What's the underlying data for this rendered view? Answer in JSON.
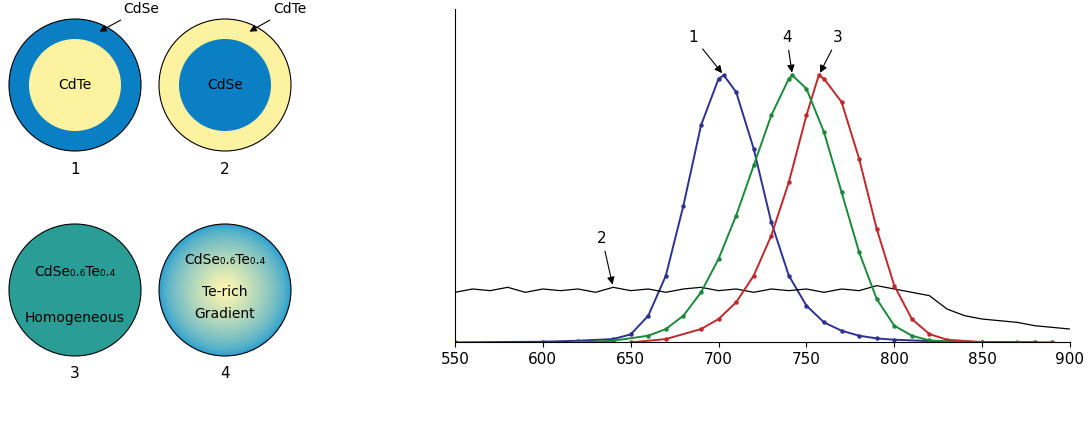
{
  "diagram": {
    "particles": [
      {
        "number": "1",
        "core": "CdTe",
        "shell": "CdSe"
      },
      {
        "number": "2",
        "core": "CdSe",
        "shell": "CdTe"
      },
      {
        "number": "3",
        "texts": [
          "CdSe₀.₆Te₀.₄",
          "Homogeneous"
        ]
      },
      {
        "number": "4",
        "texts": [
          "CdSe₀.₆Te₀.₄",
          "Te-rich",
          "Gradient"
        ]
      }
    ]
  },
  "chart_data": {
    "type": "line",
    "xlim": [
      550,
      900
    ],
    "xticks": [
      550,
      600,
      650,
      700,
      750,
      800,
      850,
      900
    ],
    "ylim": [
      0,
      1
    ],
    "yticks": [],
    "tick_labels": "x",
    "grid": false,
    "series": [
      {
        "color": "#2e3192",
        "marker": "o",
        "x": [
          550,
          600,
          620,
          640,
          650,
          660,
          670,
          680,
          690,
          700,
          703,
          710,
          720,
          730,
          740,
          750,
          760,
          770,
          780,
          790,
          800,
          820,
          850,
          880
        ],
        "values": [
          0,
          0.002,
          0.005,
          0.01,
          0.024,
          0.08,
          0.2,
          0.41,
          0.65,
          0.79,
          0.8,
          0.75,
          0.58,
          0.36,
          0.2,
          0.11,
          0.06,
          0.035,
          0.02,
          0.012,
          0.008,
          0.004,
          0.001,
          0
        ]
      },
      {
        "color": "#000000",
        "marker": "none",
        "x": [
          550,
          560,
          570,
          580,
          590,
          600,
          610,
          620,
          630,
          640,
          650,
          660,
          670,
          680,
          690,
          700,
          710,
          720,
          730,
          740,
          750,
          760,
          770,
          780,
          790,
          800,
          810,
          820,
          830,
          840,
          850,
          860,
          870,
          880,
          890,
          900
        ],
        "values": [
          0.15,
          0.16,
          0.155,
          0.165,
          0.15,
          0.16,
          0.155,
          0.16,
          0.15,
          0.165,
          0.155,
          0.16,
          0.15,
          0.16,
          0.165,
          0.155,
          0.16,
          0.15,
          0.16,
          0.155,
          0.16,
          0.15,
          0.16,
          0.155,
          0.17,
          0.16,
          0.15,
          0.14,
          0.1,
          0.08,
          0.07,
          0.065,
          0.06,
          0.05,
          0.045,
          0.04
        ]
      },
      {
        "color": "#c0282a",
        "marker": "o",
        "x": [
          650,
          670,
          690,
          700,
          710,
          720,
          730,
          740,
          750,
          757,
          760,
          770,
          780,
          790,
          800,
          810,
          820,
          830,
          850,
          890
        ],
        "values": [
          0,
          0.01,
          0.04,
          0.07,
          0.12,
          0.2,
          0.32,
          0.48,
          0.68,
          0.8,
          0.79,
          0.72,
          0.55,
          0.34,
          0.17,
          0.07,
          0.025,
          0.008,
          0.001,
          0
        ]
      },
      {
        "color": "#1a8a3a",
        "marker": "o",
        "x": [
          620,
          640,
          660,
          670,
          680,
          690,
          700,
          710,
          720,
          730,
          740,
          742,
          750,
          760,
          770,
          780,
          790,
          800,
          810,
          820,
          840,
          870
        ],
        "values": [
          0,
          0.005,
          0.02,
          0.04,
          0.08,
          0.15,
          0.25,
          0.38,
          0.53,
          0.68,
          0.79,
          0.8,
          0.76,
          0.63,
          0.45,
          0.27,
          0.13,
          0.05,
          0.02,
          0.006,
          0,
          0
        ]
      }
    ],
    "annotations": [
      {
        "text": "1",
        "x": 703,
        "y": 0.8
      },
      {
        "text": "2",
        "x": 640,
        "y": 0.165
      },
      {
        "text": "3",
        "x": 757,
        "y": 0.8
      },
      {
        "text": "4",
        "x": 742,
        "y": 0.8
      }
    ]
  }
}
